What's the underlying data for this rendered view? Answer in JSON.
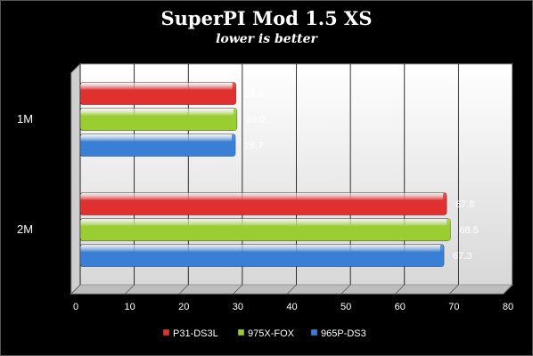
{
  "chart_data": {
    "type": "bar",
    "orientation": "horizontal",
    "title": "SuperPI Mod 1.5 XS",
    "subtitle": "lower is better",
    "categories": [
      "1M",
      "2M"
    ],
    "series": [
      {
        "name": "P31-DS3L",
        "values": [
          28.8,
          67.8
        ],
        "color": "#e03030"
      },
      {
        "name": "975X-FOX",
        "values": [
          29.0,
          68.5
        ],
        "color": "#9acd32"
      },
      {
        "name": "965P-DS3",
        "values": [
          28.7,
          67.3
        ],
        "color": "#3a7fd6"
      }
    ],
    "data_labels": [
      [
        "28.8",
        "29.0",
        "28.7"
      ],
      [
        "67.8",
        "68.5",
        "67.3"
      ]
    ],
    "xlim": [
      0,
      80
    ],
    "xticks": [
      "0",
      "10",
      "20",
      "30",
      "40",
      "50",
      "60",
      "70",
      "80"
    ],
    "xlabel": "",
    "ylabel": "",
    "grid": "vertical",
    "legend": "bottom",
    "plot_background": "#e9e9e9"
  }
}
